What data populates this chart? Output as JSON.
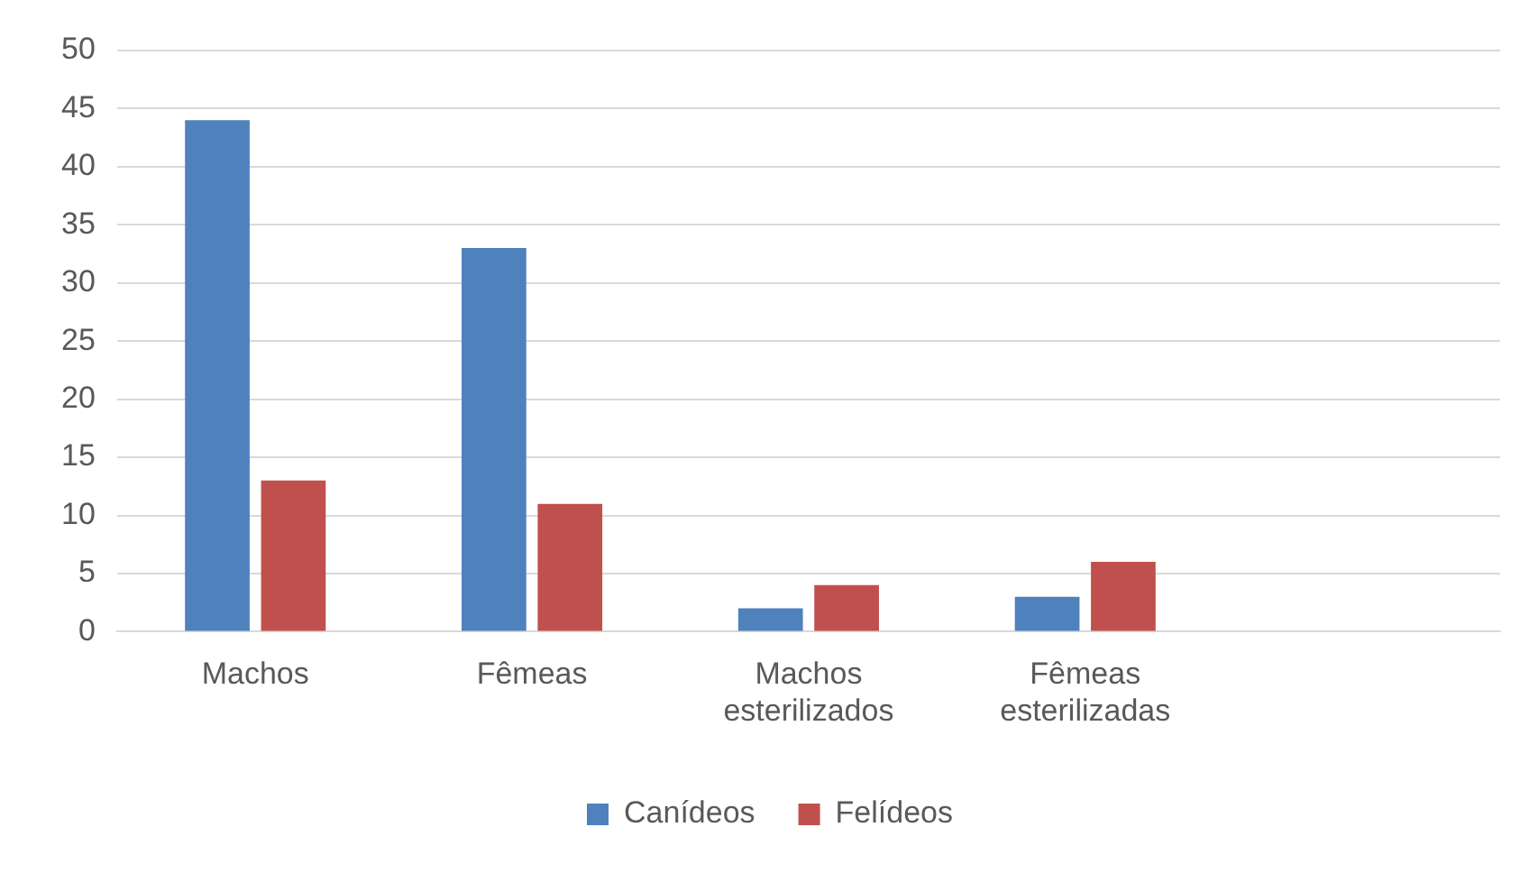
{
  "chart_data": {
    "type": "bar",
    "categories": [
      "Machos",
      "Fêmeas",
      "Machos esterilizados",
      "Fêmeas esterilizadas",
      null
    ],
    "series": [
      {
        "name": "Canídeos",
        "color": "#4f81bd",
        "values": [
          44,
          33,
          2,
          3,
          null
        ]
      },
      {
        "name": "Felídeos",
        "color": "#c0504d",
        "values": [
          13,
          11,
          4,
          6,
          null
        ]
      }
    ],
    "ylim": [
      0,
      50
    ],
    "yticks": [
      0,
      5,
      10,
      15,
      20,
      25,
      30,
      35,
      40,
      45,
      50
    ],
    "grid": "y",
    "legend": "bottom"
  }
}
